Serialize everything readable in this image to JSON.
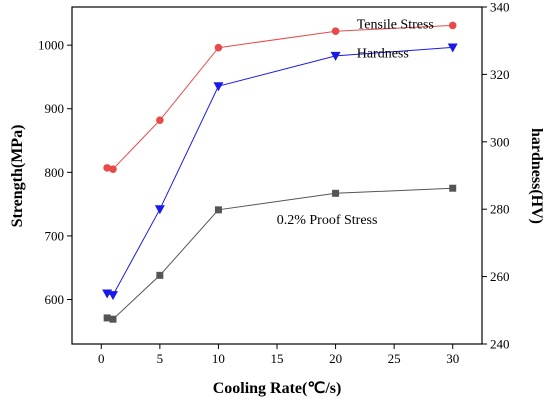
{
  "chart_data": {
    "type": "line",
    "xlabel": "Cooling Rate(℃/s)",
    "ylabel": "Strength(MPa)",
    "y2label": "hardness(HV)",
    "xlim": [
      -2.5,
      32.5
    ],
    "ylim": [
      530,
      1060
    ],
    "y2lim": [
      240,
      340
    ],
    "xticks": [
      0,
      5,
      10,
      15,
      20,
      25,
      30
    ],
    "yticks": [
      600,
      700,
      800,
      900,
      1000
    ],
    "y2ticks": [
      240,
      260,
      280,
      300,
      320,
      340
    ],
    "grid": false,
    "series": [
      {
        "name": "Tensile Stress",
        "axis": "left",
        "color": "#e84a4a",
        "marker": "circle",
        "x": [
          0.5,
          1,
          5,
          10,
          20,
          30
        ],
        "y": [
          807,
          805,
          882,
          996,
          1022,
          1031
        ]
      },
      {
        "name": "Hardness",
        "axis": "right",
        "color": "#1a1ae6",
        "marker": "triangle-down",
        "x": [
          0.5,
          1,
          5,
          10,
          20,
          30
        ],
        "y": [
          255,
          254.5,
          280,
          316.5,
          325.5,
          328
        ]
      },
      {
        "name": "0.2% Proof Stress",
        "axis": "left",
        "color": "#555555",
        "marker": "square",
        "x": [
          0.5,
          1,
          5,
          10,
          20,
          30
        ],
        "y": [
          571,
          569,
          638,
          741,
          767,
          775
        ]
      }
    ]
  }
}
